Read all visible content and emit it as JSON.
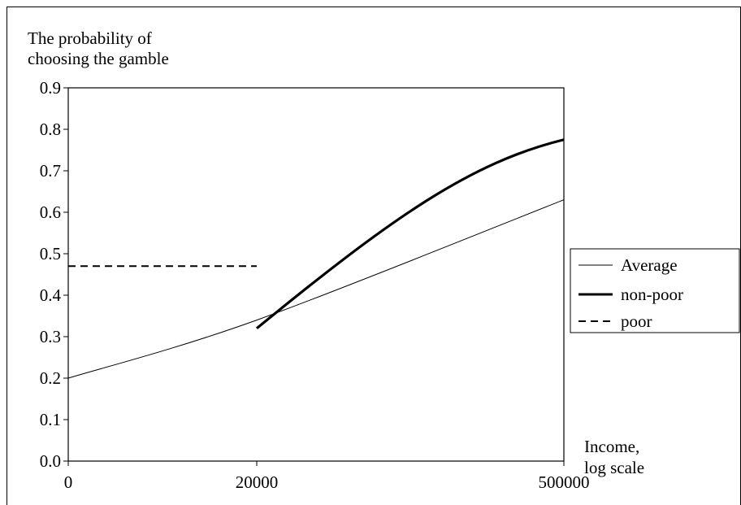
{
  "chart_data": {
    "type": "line",
    "title": "",
    "ylabel_lines": [
      "The probability of",
      "choosing the gamble"
    ],
    "xlabel_lines": [
      "Income,",
      "log scale"
    ],
    "x_scale": "log",
    "ylim": [
      0,
      0.9
    ],
    "yticks": [
      0,
      0.1,
      0.2,
      0.3,
      0.4,
      0.5,
      0.6,
      0.7,
      0.8,
      0.9
    ],
    "ytick_labels": [
      "0.0",
      "0.1",
      "0.2",
      "0.3",
      "0.4",
      "0.5",
      "0.6",
      "0.7",
      "0.8",
      "0.9"
    ],
    "xtick_labels": [
      "0",
      "20000",
      "500000"
    ],
    "grid": false,
    "legend_position": "right",
    "series": [
      {
        "name": "Average",
        "style": "thin-solid",
        "points": [
          [
            0,
            0.2
          ],
          [
            20000,
            0.34
          ],
          [
            500000,
            0.63
          ]
        ]
      },
      {
        "name": "non-poor",
        "style": "thick-solid",
        "points": [
          [
            20000,
            0.32
          ],
          [
            500000,
            0.775
          ]
        ]
      },
      {
        "name": "poor",
        "style": "dashed",
        "points": [
          [
            0,
            0.47
          ],
          [
            20000,
            0.47
          ]
        ]
      }
    ]
  }
}
